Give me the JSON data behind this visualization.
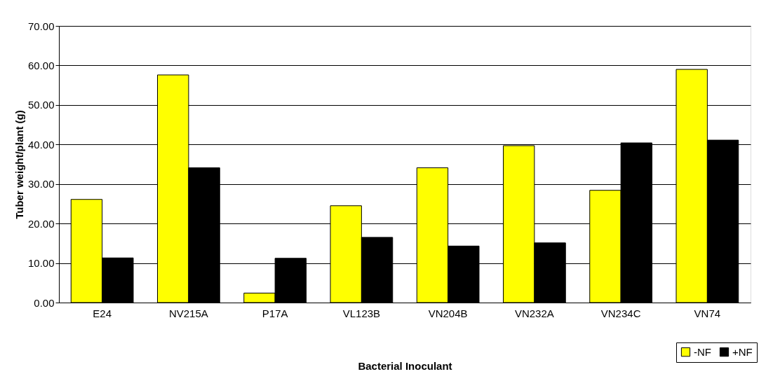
{
  "chart_data": {
    "type": "bar",
    "xlabel": "Bacterial Inoculant",
    "ylabel": "Tuber weight/plant (g)",
    "categories": [
      "E24",
      "NV215A",
      "P17A",
      "VL123B",
      "VN204B",
      "VN232A",
      "VN234C",
      "VN74"
    ],
    "series": [
      {
        "name": "-NF",
        "color": "#ffff00",
        "values": [
          26.1,
          57.6,
          2.4,
          24.5,
          34.1,
          39.7,
          28.4,
          59.0
        ]
      },
      {
        "name": "+NF",
        "color": "#000000",
        "values": [
          11.3,
          34.1,
          11.2,
          16.5,
          14.3,
          15.1,
          40.4,
          41.1
        ]
      }
    ],
    "ylim": [
      0,
      70
    ],
    "yticks": [
      {
        "value": 0,
        "label": "0.00"
      },
      {
        "value": 10,
        "label": "10.00"
      },
      {
        "value": 20,
        "label": "20.00"
      },
      {
        "value": 30,
        "label": "30.00"
      },
      {
        "value": 40,
        "label": "40.00"
      },
      {
        "value": 50,
        "label": "50.00"
      },
      {
        "value": 60,
        "label": "60.00"
      },
      {
        "value": 70,
        "label": "70.00"
      }
    ],
    "grid": "y",
    "legend": "bottom right"
  }
}
